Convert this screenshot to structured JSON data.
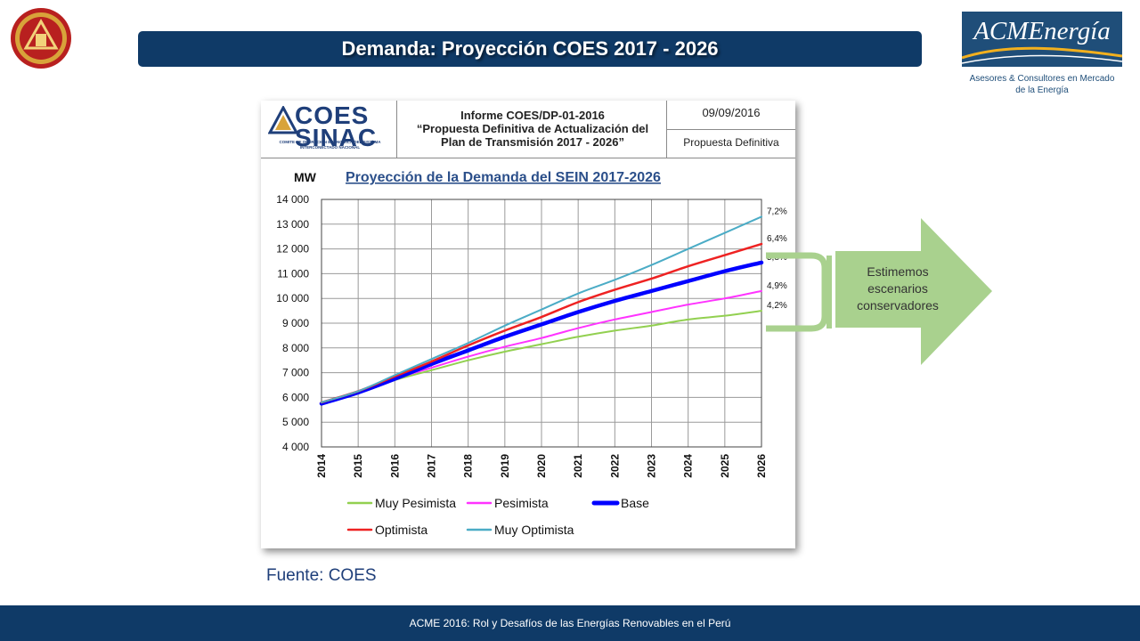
{
  "slide": {
    "title": "Demanda: Proyección COES 2017 - 2026",
    "source": "Fuente: COES",
    "footer": "ACME 2016: Rol y Desafíos de las Energías Renovables en el Perú",
    "arrow_text": [
      "Estimemos",
      "escenarios",
      "conservadores"
    ]
  },
  "logos": {
    "acm_name": "ACMEnergía",
    "acm_tagline_1": "Asesores & Consultores en Mercado",
    "acm_tagline_2": "de la Energía",
    "coes_text_1": "COES",
    "coes_text_2": "SINAC",
    "coes_sub_1": "COMITE DE OPERACION ECONOMICA DEL SISTEMA",
    "coes_sub_2": "INTERCONECTADO NACIONAL"
  },
  "report": {
    "title_1": "Informe COES/DP-01-2016",
    "title_2": "“Propuesta Definitiva de Actualización del",
    "title_3": "Plan de Transmisión 2017 - 2026”",
    "date": "09/09/2016",
    "status": "Propuesta Definitiva"
  },
  "colors": {
    "title_bar": "#0f3a67",
    "arrow": "#a9d18e",
    "muy_pesimista": "#92d050",
    "pesimista": "#ff33ff",
    "base": "#0000ff",
    "optimista": "#ee2222",
    "muy_optimista": "#4bacc6"
  },
  "chart_data": {
    "type": "line",
    "title": "Proyección de la Demanda del SEIN 2017-2026",
    "ylabel": "MW",
    "xlabel": "",
    "x": [
      2014,
      2015,
      2016,
      2017,
      2018,
      2019,
      2020,
      2021,
      2022,
      2023,
      2024,
      2025,
      2026
    ],
    "y_ticks": [
      "4 000",
      "5 000",
      "6 000",
      "7 000",
      "8 000",
      "9 000",
      "10 000",
      "11 000",
      "12 000",
      "13 000",
      "14 000"
    ],
    "ylim": [
      4000,
      14000
    ],
    "grid": true,
    "legend_position": "bottom",
    "series": [
      {
        "name": "Muy Pesimista",
        "color_key": "muy_pesimista",
        "end_label": "4,2%",
        "width": 2,
        "values": [
          5800,
          6200,
          6700,
          7100,
          7500,
          7850,
          8150,
          8450,
          8700,
          8900,
          9150,
          9300,
          9500
        ]
      },
      {
        "name": "Pesimista",
        "color_key": "pesimista",
        "end_label": "4,9%",
        "width": 2,
        "values": [
          5800,
          6200,
          6750,
          7200,
          7650,
          8050,
          8400,
          8800,
          9150,
          9450,
          9750,
          10000,
          10300
        ]
      },
      {
        "name": "Base",
        "color_key": "base",
        "end_label": "5,8%",
        "width": 4.5,
        "values": [
          5750,
          6200,
          6750,
          7350,
          7900,
          8450,
          8950,
          9450,
          9900,
          10300,
          10700,
          11100,
          11450
        ]
      },
      {
        "name": "Optimista",
        "color_key": "optimista",
        "end_label": "6,4%",
        "width": 2.5,
        "values": [
          5800,
          6250,
          6850,
          7450,
          8100,
          8700,
          9250,
          9850,
          10350,
          10800,
          11300,
          11750,
          12200
        ]
      },
      {
        "name": "Muy Optimista",
        "color_key": "muy_optimista",
        "end_label": "7,2%",
        "width": 2,
        "values": [
          5800,
          6250,
          6900,
          7550,
          8200,
          8900,
          9550,
          10200,
          10750,
          11350,
          12000,
          12650,
          13300
        ]
      }
    ]
  }
}
